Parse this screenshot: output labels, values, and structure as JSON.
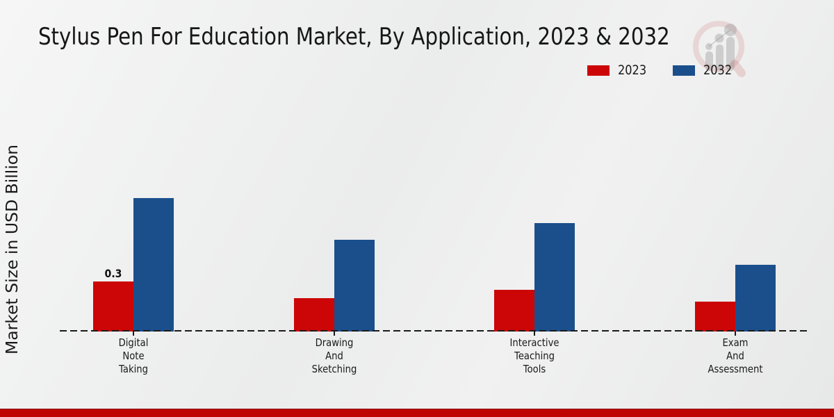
{
  "title": "Stylus Pen For Education Market, By Application, 2023 & 2032",
  "legend": {
    "items": [
      {
        "label": "2023",
        "color": "#cc0606"
      },
      {
        "label": "2032",
        "color": "#1a4f8c"
      }
    ]
  },
  "footer": {
    "band_color": "#bf0404"
  },
  "logo": {
    "name": "market-research-magnifier-logo"
  },
  "chart_data": {
    "type": "bar",
    "title": "Stylus Pen For Education Market, By Application, 2023 & 2032",
    "ylabel": "Market Size in USD Billion",
    "categories": [
      "Digital Note Taking",
      "Drawing And Sketching",
      "Interactive Teaching Tools",
      "Exam And Assessment"
    ],
    "category_lines": [
      [
        "Digital",
        "Note",
        "Taking"
      ],
      [
        "Drawing",
        "And",
        "Sketching"
      ],
      [
        "Interactive",
        "Teaching",
        "Tools"
      ],
      [
        "Exam",
        "And",
        "Assessment"
      ]
    ],
    "series": [
      {
        "name": "2023",
        "color": "#cc0606",
        "values": [
          0.3,
          0.2,
          0.25,
          0.18
        ]
      },
      {
        "name": "2032",
        "color": "#1a4f8c",
        "values": [
          0.8,
          0.55,
          0.65,
          0.4
        ]
      }
    ],
    "data_labels": [
      {
        "series": "2023",
        "category": "Digital Note Taking",
        "text": "0.3",
        "value": 0.3
      }
    ],
    "ylim": [
      0,
      0.9
    ],
    "grid": false,
    "legend_position": "upper right",
    "x_axis_style": "dashed"
  }
}
